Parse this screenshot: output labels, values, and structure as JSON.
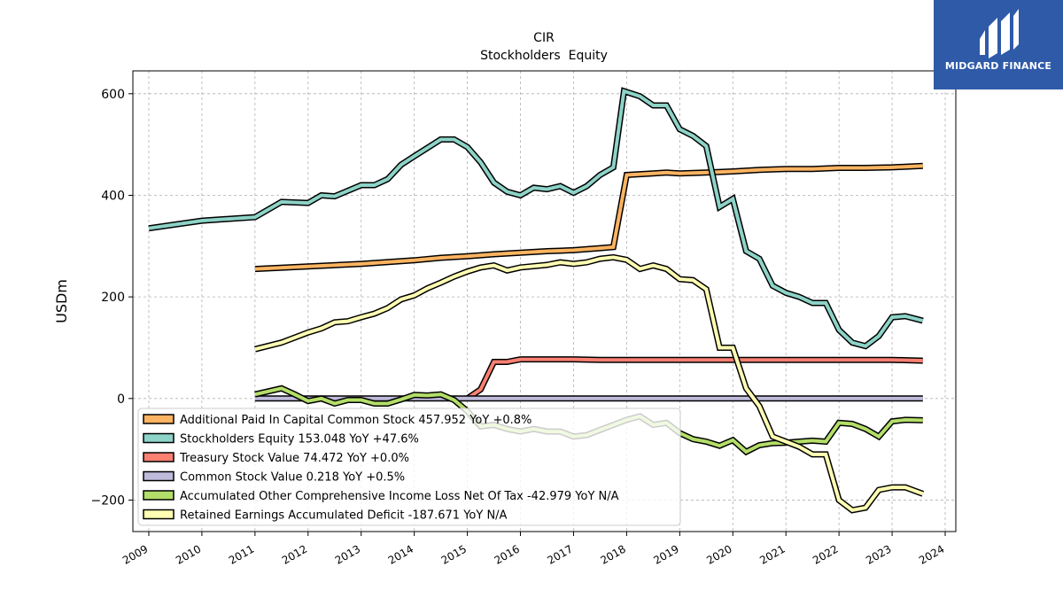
{
  "logo": {
    "text": "MIDGARD FINANCE",
    "background": "#2f5aa8"
  },
  "chart_data": {
    "type": "line",
    "title": "CIR",
    "subtitle": "Stockholders  Equity",
    "ylabel": "USDm",
    "xlabel": "",
    "xlim": [
      2008.7,
      2024.2
    ],
    "ylim": [
      -262,
      645
    ],
    "yticks": [
      -200,
      0,
      200,
      400,
      600
    ],
    "ytick_labels": [
      "−200",
      "0",
      "200",
      "400",
      "600"
    ],
    "xticks": [
      2009,
      2010,
      2011,
      2012,
      2013,
      2014,
      2015,
      2016,
      2017,
      2018,
      2019,
      2020,
      2021,
      2022,
      2023,
      2024
    ],
    "xtick_labels": [
      "2009",
      "2010",
      "2011",
      "2012",
      "2013",
      "2014",
      "2015",
      "2016",
      "2017",
      "2018",
      "2019",
      "2020",
      "2021",
      "2022",
      "2023",
      "2024"
    ],
    "grid": true,
    "legend_position": "lower-left",
    "series": [
      {
        "name": "Additional Paid In Capital Common Stock",
        "legend": "Additional Paid In Capital Common Stock  457.952 YoY +0.8%",
        "color": "#fdb462",
        "points": [
          [
            2011.0,
            255
          ],
          [
            2012.0,
            260
          ],
          [
            2013.0,
            265
          ],
          [
            2014.0,
            272
          ],
          [
            2014.5,
            277
          ],
          [
            2015.0,
            280
          ],
          [
            2015.5,
            284
          ],
          [
            2016.0,
            287
          ],
          [
            2016.5,
            290
          ],
          [
            2017.0,
            292
          ],
          [
            2017.5,
            296
          ],
          [
            2017.75,
            298
          ],
          [
            2018.0,
            440
          ],
          [
            2018.5,
            443
          ],
          [
            2018.75,
            445
          ],
          [
            2019.0,
            443
          ],
          [
            2019.5,
            445
          ],
          [
            2020.0,
            447
          ],
          [
            2020.5,
            450
          ],
          [
            2021.0,
            452
          ],
          [
            2021.5,
            452
          ],
          [
            2022.0,
            454
          ],
          [
            2022.5,
            454
          ],
          [
            2023.0,
            455
          ],
          [
            2023.58,
            457.952
          ]
        ]
      },
      {
        "name": "Stockholders Equity",
        "legend": "Stockholders Equity  153.048 YoY +47.6%",
        "color": "#8dd3c7",
        "points": [
          [
            2009.0,
            335
          ],
          [
            2010.0,
            350
          ],
          [
            2011.0,
            357
          ],
          [
            2011.5,
            387
          ],
          [
            2012.0,
            385
          ],
          [
            2012.25,
            400
          ],
          [
            2012.5,
            398
          ],
          [
            2013.0,
            420
          ],
          [
            2013.25,
            420
          ],
          [
            2013.5,
            432
          ],
          [
            2013.75,
            460
          ],
          [
            2014.0,
            477
          ],
          [
            2014.5,
            510
          ],
          [
            2014.75,
            510
          ],
          [
            2015.0,
            495
          ],
          [
            2015.25,
            465
          ],
          [
            2015.5,
            425
          ],
          [
            2015.75,
            407
          ],
          [
            2016.0,
            400
          ],
          [
            2016.25,
            415
          ],
          [
            2016.5,
            412
          ],
          [
            2016.75,
            418
          ],
          [
            2017.0,
            405
          ],
          [
            2017.25,
            418
          ],
          [
            2017.5,
            440
          ],
          [
            2017.75,
            455
          ],
          [
            2017.95,
            605
          ],
          [
            2018.25,
            595
          ],
          [
            2018.5,
            577
          ],
          [
            2018.75,
            577
          ],
          [
            2019.0,
            530
          ],
          [
            2019.25,
            517
          ],
          [
            2019.5,
            497
          ],
          [
            2019.75,
            377
          ],
          [
            2020.0,
            393
          ],
          [
            2020.25,
            290
          ],
          [
            2020.5,
            275
          ],
          [
            2020.75,
            222
          ],
          [
            2021.0,
            208
          ],
          [
            2021.25,
            200
          ],
          [
            2021.5,
            188
          ],
          [
            2021.75,
            188
          ],
          [
            2022.0,
            135
          ],
          [
            2022.25,
            110
          ],
          [
            2022.5,
            103
          ],
          [
            2022.75,
            123
          ],
          [
            2023.0,
            160
          ],
          [
            2023.25,
            162
          ],
          [
            2023.58,
            153.048
          ]
        ]
      },
      {
        "name": "Treasury Stock Value",
        "legend": "Treasury Stock Value  74.472 YoY +0.0%",
        "color": "#fb8072",
        "points": [
          [
            2015.0,
            0
          ],
          [
            2015.25,
            18
          ],
          [
            2015.5,
            72
          ],
          [
            2015.75,
            72
          ],
          [
            2016.0,
            77
          ],
          [
            2016.5,
            77
          ],
          [
            2017.0,
            77
          ],
          [
            2017.5,
            76
          ],
          [
            2018.0,
            76
          ],
          [
            2019.0,
            76
          ],
          [
            2020.0,
            76
          ],
          [
            2021.0,
            76
          ],
          [
            2022.0,
            76
          ],
          [
            2023.0,
            76
          ],
          [
            2023.58,
            74.472
          ]
        ]
      },
      {
        "name": "Common Stock Value",
        "legend": "Common Stock Value  0.218 YoY +0.5%",
        "color": "#bebada",
        "points": [
          [
            2011.0,
            0.2
          ],
          [
            2012.0,
            0.2
          ],
          [
            2013.0,
            0.2
          ],
          [
            2014.0,
            0.2
          ],
          [
            2015.0,
            0.2
          ],
          [
            2016.0,
            0.2
          ],
          [
            2017.0,
            0.2
          ],
          [
            2018.0,
            0.2
          ],
          [
            2019.0,
            0.2
          ],
          [
            2020.0,
            0.2
          ],
          [
            2021.0,
            0.2
          ],
          [
            2022.0,
            0.2
          ],
          [
            2023.0,
            0.2
          ],
          [
            2023.58,
            0.218
          ]
        ]
      },
      {
        "name": "Accumulated Other Comprehensive Income Loss Net Of Tax",
        "legend": "Accumulated Other Comprehensive Income Loss Net Of Tax  -42.979 YoY N/A",
        "color": "#b3de69",
        "points": [
          [
            2011.0,
            8
          ],
          [
            2011.5,
            20
          ],
          [
            2011.75,
            8
          ],
          [
            2012.0,
            -5
          ],
          [
            2012.25,
            0
          ],
          [
            2012.5,
            -10
          ],
          [
            2012.75,
            -3
          ],
          [
            2013.0,
            -3
          ],
          [
            2013.25,
            -10
          ],
          [
            2013.5,
            -10
          ],
          [
            2013.75,
            -2
          ],
          [
            2014.0,
            7
          ],
          [
            2014.25,
            6
          ],
          [
            2014.5,
            8
          ],
          [
            2014.75,
            -3
          ],
          [
            2015.0,
            -25
          ],
          [
            2015.25,
            -55
          ],
          [
            2015.5,
            -52
          ],
          [
            2015.75,
            -60
          ],
          [
            2016.0,
            -65
          ],
          [
            2016.25,
            -60
          ],
          [
            2016.5,
            -65
          ],
          [
            2016.75,
            -65
          ],
          [
            2017.0,
            -75
          ],
          [
            2017.25,
            -72
          ],
          [
            2017.5,
            -62
          ],
          [
            2017.75,
            -52
          ],
          [
            2018.0,
            -42
          ],
          [
            2018.25,
            -35
          ],
          [
            2018.5,
            -52
          ],
          [
            2018.75,
            -48
          ],
          [
            2019.0,
            -68
          ],
          [
            2019.25,
            -80
          ],
          [
            2019.5,
            -85
          ],
          [
            2019.75,
            -93
          ],
          [
            2020.0,
            -82
          ],
          [
            2020.25,
            -105
          ],
          [
            2020.5,
            -92
          ],
          [
            2020.75,
            -88
          ],
          [
            2021.0,
            -87
          ],
          [
            2021.25,
            -85
          ],
          [
            2021.5,
            -83
          ],
          [
            2021.75,
            -85
          ],
          [
            2022.0,
            -48
          ],
          [
            2022.25,
            -50
          ],
          [
            2022.5,
            -60
          ],
          [
            2022.75,
            -75
          ],
          [
            2023.0,
            -45
          ],
          [
            2023.25,
            -42
          ],
          [
            2023.58,
            -42.979
          ]
        ]
      },
      {
        "name": "Retained Earnings Accumulated Deficit",
        "legend": "Retained Earnings Accumulated Deficit  -187.671 YoY N/A",
        "color": "#ffffb3",
        "points": [
          [
            2011.0,
            97
          ],
          [
            2011.5,
            110
          ],
          [
            2012.0,
            130
          ],
          [
            2012.25,
            138
          ],
          [
            2012.5,
            150
          ],
          [
            2012.75,
            152
          ],
          [
            2013.0,
            160
          ],
          [
            2013.25,
            167
          ],
          [
            2013.5,
            178
          ],
          [
            2013.75,
            195
          ],
          [
            2014.0,
            203
          ],
          [
            2014.25,
            217
          ],
          [
            2014.5,
            228
          ],
          [
            2014.75,
            240
          ],
          [
            2015.0,
            250
          ],
          [
            2015.25,
            258
          ],
          [
            2015.5,
            262
          ],
          [
            2015.75,
            252
          ],
          [
            2016.0,
            258
          ],
          [
            2016.5,
            263
          ],
          [
            2016.75,
            268
          ],
          [
            2017.0,
            265
          ],
          [
            2017.25,
            268
          ],
          [
            2017.5,
            275
          ],
          [
            2017.75,
            278
          ],
          [
            2018.0,
            273
          ],
          [
            2018.25,
            255
          ],
          [
            2018.5,
            262
          ],
          [
            2018.75,
            255
          ],
          [
            2019.0,
            235
          ],
          [
            2019.25,
            233
          ],
          [
            2019.5,
            215
          ],
          [
            2019.75,
            100
          ],
          [
            2020.0,
            100
          ],
          [
            2020.25,
            20
          ],
          [
            2020.5,
            -15
          ],
          [
            2020.75,
            -75
          ],
          [
            2021.0,
            -85
          ],
          [
            2021.25,
            -95
          ],
          [
            2021.5,
            -110
          ],
          [
            2021.75,
            -110
          ],
          [
            2022.0,
            -200
          ],
          [
            2022.25,
            -220
          ],
          [
            2022.5,
            -215
          ],
          [
            2022.75,
            -180
          ],
          [
            2023.0,
            -175
          ],
          [
            2023.25,
            -175
          ],
          [
            2023.58,
            -187.671
          ]
        ]
      }
    ]
  }
}
